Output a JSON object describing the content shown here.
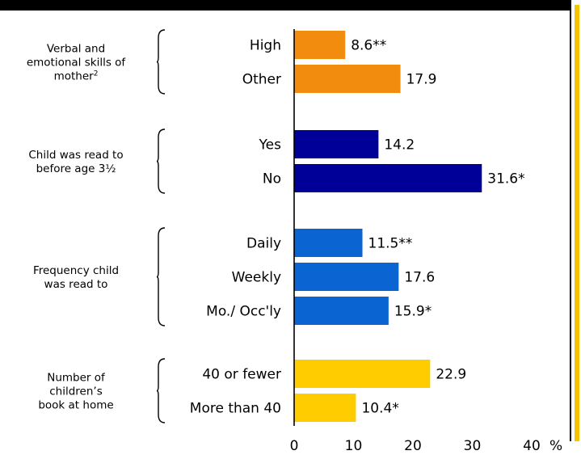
{
  "chart_data": {
    "type": "bar",
    "orientation": "horizontal",
    "xlim": [
      0,
      40
    ],
    "x_ticks": [
      "0",
      "10",
      "20",
      "30",
      "40"
    ],
    "unit": "%",
    "grid": false,
    "groups": [
      {
        "label_lines": [
          "Verbal and",
          "emotional skills of",
          "mother"
        ],
        "label_superscript": "2",
        "color": "#f28c0f",
        "bars": [
          {
            "category": "High",
            "value": 8.6,
            "label": "8.6**"
          },
          {
            "category": "Other",
            "value": 17.9,
            "label": "17.9"
          }
        ]
      },
      {
        "label_lines": [
          "Child was read to",
          "before age 3½"
        ],
        "color": "#000099",
        "bars": [
          {
            "category": "Yes",
            "value": 14.2,
            "label": "14.2"
          },
          {
            "category": "No",
            "value": 31.6,
            "label": "31.6*"
          }
        ]
      },
      {
        "label_lines": [
          "Frequency child",
          "was read to"
        ],
        "color": "#0a64d2",
        "bars": [
          {
            "category": "Daily",
            "value": 11.5,
            "label": "11.5**"
          },
          {
            "category": "Weekly",
            "value": 17.6,
            "label": "17.6"
          },
          {
            "category": "Mo./ Occ'ly",
            "value": 15.9,
            "label": "15.9*"
          }
        ]
      },
      {
        "label_lines": [
          "Number of",
          "children’s",
          "book at home"
        ],
        "color": "#ffcc00",
        "bars": [
          {
            "category": "40 or fewer",
            "value": 22.9,
            "label": "22.9"
          },
          {
            "category": "More than 40",
            "value": 10.4,
            "label": "10.4*"
          }
        ]
      }
    ]
  }
}
